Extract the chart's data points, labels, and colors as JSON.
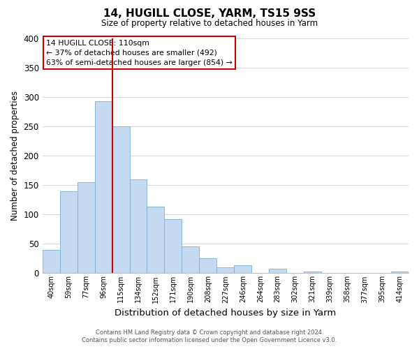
{
  "title": "14, HUGILL CLOSE, YARM, TS15 9SS",
  "subtitle": "Size of property relative to detached houses in Yarm",
  "xlabel": "Distribution of detached houses by size in Yarm",
  "ylabel": "Number of detached properties",
  "bar_labels": [
    "40sqm",
    "59sqm",
    "77sqm",
    "96sqm",
    "115sqm",
    "134sqm",
    "152sqm",
    "171sqm",
    "190sqm",
    "208sqm",
    "227sqm",
    "246sqm",
    "264sqm",
    "283sqm",
    "302sqm",
    "321sqm",
    "339sqm",
    "358sqm",
    "377sqm",
    "395sqm",
    "414sqm"
  ],
  "bar_values": [
    40,
    140,
    155,
    293,
    250,
    160,
    113,
    92,
    46,
    25,
    10,
    13,
    0,
    8,
    0,
    3,
    0,
    0,
    0,
    0,
    3
  ],
  "bar_color": "#c5d9f0",
  "bar_edgecolor": "#7bafd4",
  "vline_index": 3.5,
  "vline_color": "#cc0000",
  "ylim": [
    0,
    400
  ],
  "yticks": [
    0,
    50,
    100,
    150,
    200,
    250,
    300,
    350,
    400
  ],
  "annotation_title": "14 HUGILL CLOSE: 110sqm",
  "annotation_line1": "← 37% of detached houses are smaller (492)",
  "annotation_line2": "63% of semi-detached houses are larger (854) →",
  "footer_line1": "Contains HM Land Registry data © Crown copyright and database right 2024.",
  "footer_line2": "Contains public sector information licensed under the Open Government Licence v3.0.",
  "background_color": "#ffffff",
  "grid_color": "#d0dae8"
}
